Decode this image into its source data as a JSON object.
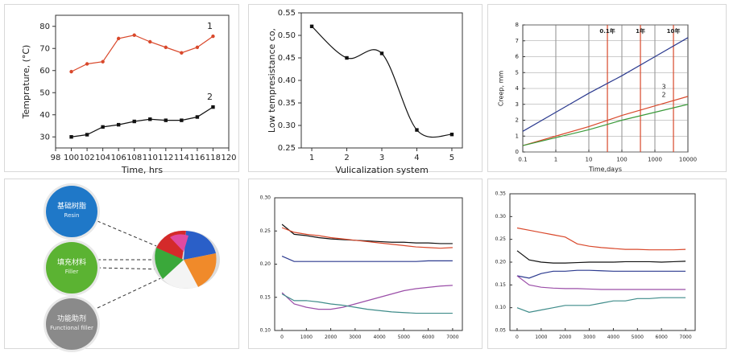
{
  "chart_data": [
    {
      "type": "line",
      "x_label": "Time, hrs",
      "y_label": "Temprature, (°C)",
      "x": [
        100,
        102,
        104,
        106,
        108,
        110,
        112,
        114,
        116,
        118
      ],
      "series": [
        {
          "name": "1",
          "color": "#d9482b",
          "marker": "circle",
          "values": [
            59.5,
            63,
            64,
            74.5,
            76,
            73,
            70.5,
            68,
            70.5,
            75.5
          ]
        },
        {
          "name": "2",
          "color": "#111111",
          "marker": "square",
          "values": [
            30,
            31,
            34.5,
            35.5,
            37,
            38,
            37.5,
            37.5,
            39,
            43.5
          ]
        }
      ],
      "xlim": [
        98,
        120
      ],
      "xticks": [
        98,
        100,
        102,
        104,
        106,
        108,
        110,
        112,
        114,
        116,
        118,
        120
      ],
      "ylim": [
        25,
        85
      ],
      "yticks": [
        30,
        40,
        50,
        60,
        70,
        80
      ],
      "grid": false
    },
    {
      "type": "scatter",
      "x_label": "Vulicalization system",
      "y_label": "Low tempresistance co,",
      "x": [
        1,
        2,
        3,
        4,
        5
      ],
      "series": [
        {
          "color": "#111111",
          "marker": "square",
          "curve": "smooth",
          "values": [
            0.52,
            0.45,
            0.46,
            0.29,
            0.28
          ]
        }
      ],
      "xlim": [
        0.7,
        5.3
      ],
      "xticks": [
        1,
        2,
        3,
        4,
        5
      ],
      "ylim": [
        0.25,
        0.55
      ],
      "yticks": [
        0.25,
        {
          "value": 0.3,
          "label": "0.30"
        },
        0.35,
        {
          "value": 0.4,
          "label": "0.40"
        },
        0.45,
        {
          "value": 0.5,
          "label": "0.50"
        },
        0.55
      ],
      "grid": false
    },
    {
      "type": "line",
      "x_label": "Time,days",
      "y_label": "Creep, mm",
      "x_log": true,
      "x": [
        0.1,
        1,
        10,
        100,
        1000,
        10000
      ],
      "series": [
        {
          "color": "#2b3a8f",
          "values": [
            1.3,
            2.5,
            3.7,
            4.8,
            6.0,
            7.2
          ]
        },
        {
          "name": "3",
          "color": "#d9482b",
          "values": [
            0.4,
            1.0,
            1.6,
            2.3,
            2.9,
            3.5
          ]
        },
        {
          "name": "2",
          "color": "#3a9a3a",
          "values": [
            0.4,
            0.9,
            1.4,
            2.0,
            2.5,
            3.0
          ]
        }
      ],
      "markers": [
        {
          "x": 36.5,
          "label": "0.1年"
        },
        {
          "x": 365,
          "label": "1年"
        },
        {
          "x": 3650,
          "label": "10年"
        }
      ],
      "xlim": [
        0.1,
        10000
      ],
      "xticks": [
        0.1,
        1,
        10,
        100,
        1000,
        10000
      ],
      "ylim": [
        0,
        8
      ],
      "yticks": [
        0,
        1,
        2,
        3,
        4,
        5,
        6,
        7,
        8
      ],
      "grid": true
    },
    {
      "type": "line",
      "x": [
        0,
        500,
        1000,
        1500,
        2000,
        2500,
        3000,
        3500,
        4000,
        4500,
        5000,
        5500,
        6000,
        6500,
        7000
      ],
      "series": [
        {
          "color": "#111111",
          "values": [
            0.26,
            0.245,
            0.243,
            0.24,
            0.238,
            0.237,
            0.236,
            0.235,
            0.234,
            0.233,
            0.233,
            0.232,
            0.232,
            0.231,
            0.231
          ]
        },
        {
          "color": "#d9482b",
          "values": [
            0.255,
            0.248,
            0.245,
            0.243,
            0.24,
            0.238,
            0.236,
            0.234,
            0.232,
            0.23,
            0.228,
            0.226,
            0.225,
            0.224,
            0.225
          ]
        },
        {
          "color": "#2b3a8f",
          "values": [
            0.212,
            0.204,
            0.204,
            0.204,
            0.204,
            0.204,
            0.204,
            0.204,
            0.204,
            0.204,
            0.204,
            0.204,
            0.205,
            0.205,
            0.205
          ]
        },
        {
          "color": "#9b4ea8",
          "values": [
            0.157,
            0.14,
            0.135,
            0.132,
            0.132,
            0.135,
            0.14,
            0.145,
            0.15,
            0.155,
            0.16,
            0.163,
            0.165,
            0.167,
            0.168
          ]
        },
        {
          "color": "#3f8c8a",
          "values": [
            0.155,
            0.145,
            0.145,
            0.143,
            0.14,
            0.138,
            0.135,
            0.132,
            0.13,
            0.128,
            0.127,
            0.126,
            0.126,
            0.126,
            0.126
          ]
        }
      ],
      "xlim": [
        -300,
        7400
      ],
      "xticks": [
        0,
        1000,
        2000,
        3000,
        4000,
        5000,
        6000,
        7000
      ],
      "ylim": [
        0.1,
        0.3
      ],
      "yticks": [
        {
          "value": 0.1,
          "label": "0.10"
        },
        0.15,
        {
          "value": 0.2,
          "label": "0.20"
        },
        0.25,
        {
          "value": 0.3,
          "label": "0.30"
        }
      ],
      "grid": false
    },
    {
      "type": "line",
      "x": [
        0,
        500,
        1000,
        1500,
        2000,
        2500,
        3000,
        3500,
        4000,
        4500,
        5000,
        5500,
        6000,
        6500,
        7000
      ],
      "series": [
        {
          "color": "#d9482b",
          "values": [
            0.275,
            0.27,
            0.265,
            0.26,
            0.255,
            0.24,
            0.235,
            0.232,
            0.23,
            0.228,
            0.228,
            0.227,
            0.227,
            0.227,
            0.228
          ]
        },
        {
          "color": "#111111",
          "values": [
            0.225,
            0.205,
            0.2,
            0.198,
            0.198,
            0.199,
            0.2,
            0.2,
            0.2,
            0.201,
            0.201,
            0.201,
            0.2,
            0.201,
            0.202
          ]
        },
        {
          "color": "#2b3a8f",
          "values": [
            0.17,
            0.165,
            0.175,
            0.18,
            0.18,
            0.182,
            0.182,
            0.181,
            0.18,
            0.18,
            0.18,
            0.18,
            0.18,
            0.18,
            0.18
          ]
        },
        {
          "color": "#9b4ea8",
          "values": [
            0.17,
            0.15,
            0.145,
            0.143,
            0.142,
            0.142,
            0.141,
            0.14,
            0.14,
            0.14,
            0.14,
            0.14,
            0.14,
            0.14,
            0.14
          ]
        },
        {
          "color": "#3f8c8a",
          "values": [
            0.1,
            0.09,
            0.095,
            0.1,
            0.105,
            0.105,
            0.105,
            0.11,
            0.115,
            0.115,
            0.12,
            0.12,
            0.122,
            0.122,
            0.122
          ]
        }
      ],
      "xlim": [
        -300,
        7400
      ],
      "xticks": [
        0,
        1000,
        2000,
        3000,
        4000,
        5000,
        6000,
        7000
      ],
      "ylim": [
        0.05,
        0.35
      ],
      "yticks": [
        0.05,
        {
          "value": 0.1,
          "label": "0.10"
        },
        0.15,
        {
          "value": 0.2,
          "label": "0.20"
        },
        0.25,
        {
          "value": 0.3,
          "label": "0.30"
        },
        0.35
      ],
      "grid": false
    }
  ],
  "diagram": {
    "nodes": [
      {
        "label": "基础树脂",
        "sublabel": "Resin",
        "color": "#1f78c8"
      },
      {
        "label": "填充材料",
        "sublabel": "Filler",
        "color": "#5bb332"
      },
      {
        "label": "功能助剂",
        "sublabel": "Functional filler",
        "color": "#8a8a8a"
      }
    ]
  }
}
